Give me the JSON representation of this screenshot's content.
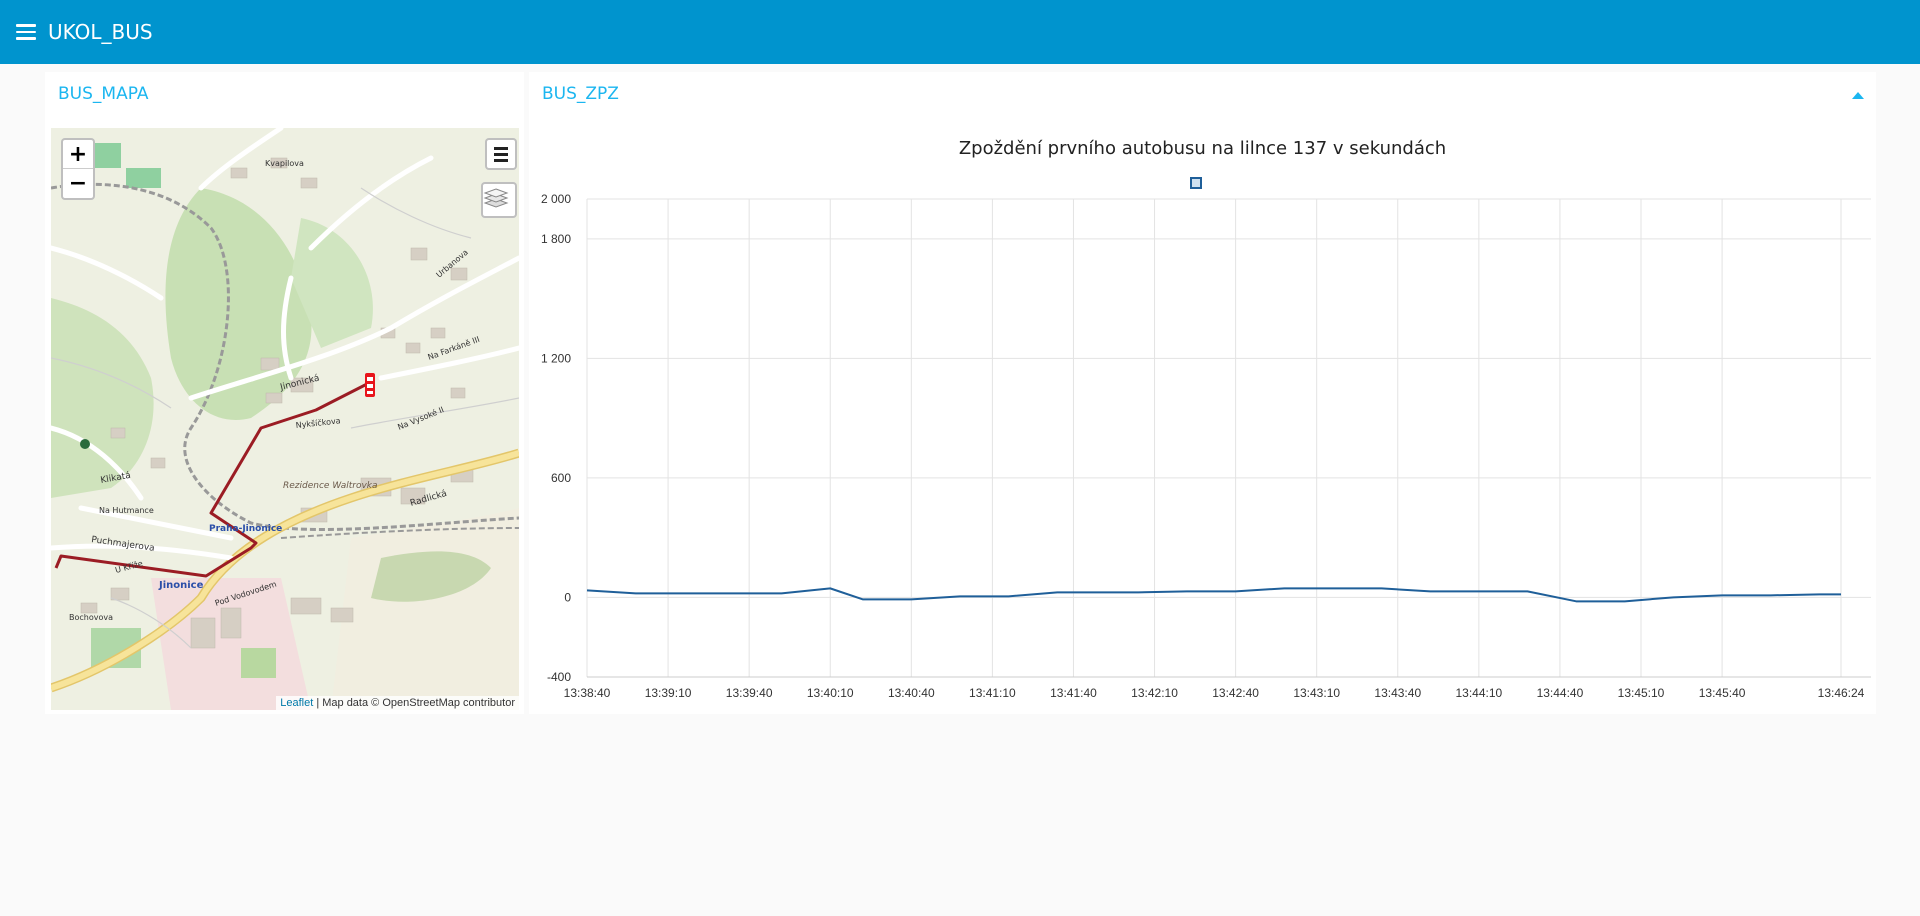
{
  "header": {
    "title": "UKOL_BUS",
    "menu_icon": "hamburger-menu-icon"
  },
  "map_card": {
    "title": "BUS_MAPA",
    "zoom_in": "+",
    "zoom_out": "−",
    "attribution_link": "Leaflet",
    "attribution_text": " | Map data © OpenStreetMap contributor",
    "labels": [
      "Jinonická",
      "Radlická",
      "Puchmajerova",
      "Praha-Jinonice",
      "Jinonice",
      "Klikatá",
      "Rezidence Waltrovka",
      "Na Farkáně III",
      "Na Vysoké II",
      "Kvapilova",
      "Urbanova",
      "Pod Vodovodem",
      "Bochovova",
      "U Kříže",
      "Na Hutmance",
      "Nykšíčkova"
    ],
    "colors": {
      "route": "#9b1c24",
      "bus": "#e8141b"
    }
  },
  "chart_card": {
    "title": "BUS_ZPZ",
    "collapse_icon": "chevron-up-icon"
  },
  "chart_data": {
    "type": "line",
    "title": "Zpoždění prvního autobusu na lilnce 137 v sekundách",
    "xlabel": "",
    "ylabel": "",
    "ylim": [
      -400,
      2000
    ],
    "yticks": [
      "-400",
      "0",
      "600",
      "1 200",
      "1 800",
      "2 000"
    ],
    "ytick_values": [
      -400,
      0,
      600,
      1200,
      1800,
      2000
    ],
    "xticks": [
      "13:38:40",
      "13:39:10",
      "13:39:40",
      "13:40:10",
      "13:40:40",
      "13:41:10",
      "13:41:40",
      "13:42:10",
      "13:42:40",
      "13:43:10",
      "13:43:40",
      "13:44:10",
      "13:44:40",
      "13:45:10",
      "13:45:40",
      "13:46:24"
    ],
    "xtick_seconds": [
      0,
      30,
      60,
      90,
      120,
      150,
      180,
      210,
      240,
      270,
      300,
      330,
      360,
      390,
      420,
      464
    ],
    "grid": true,
    "legend": "top-center",
    "series": [
      {
        "color": "#1f5f99",
        "x": [
          0,
          18,
          36,
          54,
          72,
          90,
          102,
          120,
          138,
          156,
          174,
          186,
          204,
          222,
          240,
          258,
          276,
          294,
          312,
          330,
          348,
          366,
          384,
          402,
          420,
          438,
          456,
          464
        ],
        "values": [
          35,
          20,
          20,
          20,
          20,
          45,
          -10,
          -10,
          5,
          5,
          25,
          25,
          25,
          30,
          30,
          45,
          45,
          45,
          30,
          30,
          30,
          -20,
          -20,
          0,
          10,
          10,
          15,
          15
        ]
      }
    ]
  }
}
